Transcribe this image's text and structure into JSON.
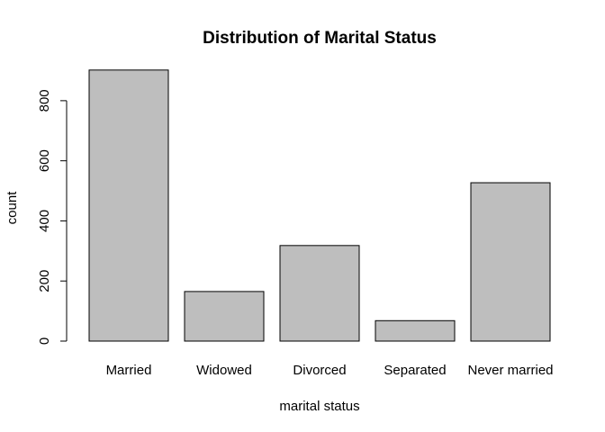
{
  "chart_data": {
    "type": "bar",
    "title": "Distribution of Marital Status",
    "xlabel": "marital status",
    "ylabel": "count",
    "categories": [
      "Married",
      "Widowed",
      "Divorced",
      "Separated",
      "Never married"
    ],
    "values": [
      902,
      165,
      318,
      68,
      527
    ],
    "ylim": [
      0,
      900
    ],
    "yticks": [
      0,
      200,
      400,
      600,
      800
    ],
    "grid": false,
    "colors": {
      "bar_fill": "#bebebe",
      "bar_stroke": "#000000",
      "text": "#000000",
      "background": "#ffffff"
    }
  }
}
